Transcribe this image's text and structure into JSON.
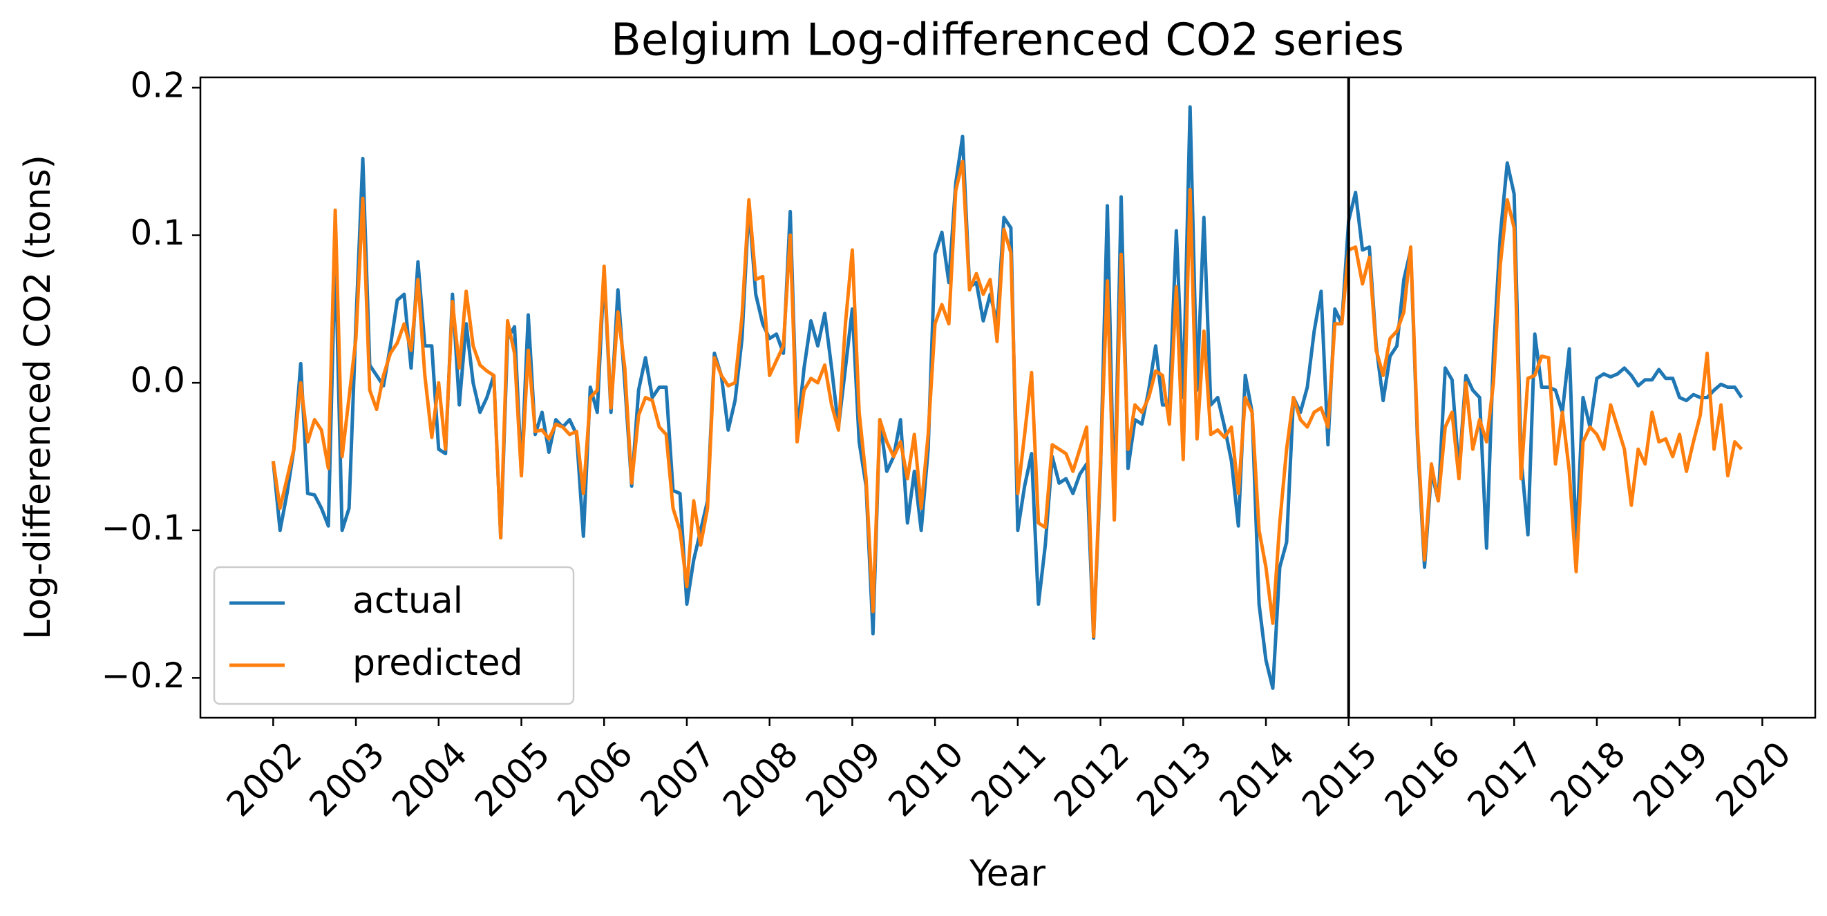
{
  "chart_data": {
    "type": "line",
    "title": "Belgium Log-differenced CO2 series",
    "x_label": "Year",
    "y_label": "Log-differenced CO2 (tons)",
    "xlim": [
      2001.12,
      2020.64
    ],
    "ylim": [
      -0.227,
      0.207
    ],
    "xticks": [
      2002,
      2003,
      2004,
      2005,
      2006,
      2007,
      2008,
      2009,
      2010,
      2011,
      2012,
      2013,
      2014,
      2015,
      2016,
      2017,
      2018,
      2019,
      2020
    ],
    "yticks": [
      {
        "value": -0.2,
        "label": "−0.2"
      },
      {
        "value": -0.1,
        "label": "−0.1"
      },
      {
        "value": 0,
        "label": "0.0"
      },
      0.1,
      0.2
    ],
    "vline": {
      "x": 2015,
      "color": "#000000"
    },
    "legend_position": "lower left",
    "x": [
      2002,
      2002.083,
      2002.167,
      2002.25,
      2002.333,
      2002.417,
      2002.5,
      2002.583,
      2002.667,
      2002.75,
      2002.833,
      2002.917,
      2003,
      2003.083,
      2003.167,
      2003.25,
      2003.333,
      2003.417,
      2003.5,
      2003.583,
      2003.667,
      2003.75,
      2003.833,
      2003.917,
      2004,
      2004.083,
      2004.167,
      2004.25,
      2004.333,
      2004.417,
      2004.5,
      2004.583,
      2004.667,
      2004.75,
      2004.833,
      2004.917,
      2005,
      2005.083,
      2005.167,
      2005.25,
      2005.333,
      2005.417,
      2005.5,
      2005.583,
      2005.667,
      2005.75,
      2005.833,
      2005.917,
      2006,
      2006.083,
      2006.167,
      2006.25,
      2006.333,
      2006.417,
      2006.5,
      2006.583,
      2006.667,
      2006.75,
      2006.833,
      2006.917,
      2007,
      2007.083,
      2007.167,
      2007.25,
      2007.333,
      2007.417,
      2007.5,
      2007.583,
      2007.667,
      2007.75,
      2007.833,
      2007.917,
      2008,
      2008.083,
      2008.167,
      2008.25,
      2008.333,
      2008.417,
      2008.5,
      2008.583,
      2008.667,
      2008.75,
      2008.833,
      2008.917,
      2009,
      2009.083,
      2009.167,
      2009.25,
      2009.333,
      2009.417,
      2009.5,
      2009.583,
      2009.667,
      2009.75,
      2009.833,
      2009.917,
      2010,
      2010.083,
      2010.167,
      2010.25,
      2010.333,
      2010.417,
      2010.5,
      2010.583,
      2010.667,
      2010.75,
      2010.833,
      2010.917,
      2011,
      2011.083,
      2011.167,
      2011.25,
      2011.333,
      2011.417,
      2011.5,
      2011.583,
      2011.667,
      2011.75,
      2011.833,
      2011.917,
      2012,
      2012.083,
      2012.167,
      2012.25,
      2012.333,
      2012.417,
      2012.5,
      2012.583,
      2012.667,
      2012.75,
      2012.833,
      2012.917,
      2013,
      2013.083,
      2013.167,
      2013.25,
      2013.333,
      2013.417,
      2013.5,
      2013.583,
      2013.667,
      2013.75,
      2013.833,
      2013.917,
      2014,
      2014.083,
      2014.167,
      2014.25,
      2014.333,
      2014.417,
      2014.5,
      2014.583,
      2014.667,
      2014.75,
      2014.833,
      2014.917,
      2015,
      2015.083,
      2015.167,
      2015.25,
      2015.333,
      2015.417,
      2015.5,
      2015.583,
      2015.667,
      2015.75,
      2015.833,
      2015.917,
      2016,
      2016.083,
      2016.167,
      2016.25,
      2016.333,
      2016.417,
      2016.5,
      2016.583,
      2016.667,
      2016.75,
      2016.833,
      2016.917,
      2017,
      2017.083,
      2017.167,
      2017.25,
      2017.333,
      2017.417,
      2017.5,
      2017.583,
      2017.667,
      2017.75,
      2017.833,
      2017.917,
      2018,
      2018.083,
      2018.167,
      2018.25,
      2018.333,
      2018.417,
      2018.5,
      2018.583,
      2018.667,
      2018.75,
      2018.833,
      2018.917,
      2019,
      2019.083,
      2019.167,
      2019.25,
      2019.333,
      2019.417,
      2019.5,
      2019.583,
      2019.667,
      2019.75
    ],
    "series": [
      {
        "name": "actual",
        "color": "#1f77b4",
        "values": [
          -0.053,
          -0.1,
          -0.075,
          -0.045,
          0.013,
          -0.075,
          -0.076,
          -0.085,
          -0.097,
          0.09,
          -0.1,
          -0.085,
          0.04,
          0.152,
          0.012,
          0.005,
          -0.002,
          0.025,
          0.056,
          0.06,
          0.01,
          0.082,
          0.025,
          0.025,
          -0.045,
          -0.048,
          0.06,
          -0.015,
          0.04,
          0,
          -0.02,
          -0.01,
          0.005,
          -0.105,
          0.03,
          0.038,
          -0.06,
          0.046,
          -0.035,
          -0.02,
          -0.047,
          -0.025,
          -0.03,
          -0.025,
          -0.035,
          -0.104,
          -0.003,
          -0.02,
          0.075,
          -0.02,
          0.063,
          0,
          -0.07,
          -0.005,
          0.017,
          -0.01,
          -0.003,
          -0.003,
          -0.073,
          -0.075,
          -0.15,
          -0.12,
          -0.1,
          -0.08,
          0.02,
          0.005,
          -0.032,
          -0.012,
          0.03,
          0.12,
          0.06,
          0.04,
          0.03,
          0.033,
          0.02,
          0.116,
          -0.035,
          0.01,
          0.042,
          0.025,
          0.047,
          0.01,
          -0.03,
          0.01,
          0.05,
          -0.04,
          -0.07,
          -0.17,
          -0.025,
          -0.06,
          -0.05,
          -0.025,
          -0.095,
          -0.06,
          -0.1,
          -0.045,
          0.087,
          0.102,
          0.068,
          0.135,
          0.167,
          0.065,
          0.068,
          0.042,
          0.06,
          0.04,
          0.112,
          0.105,
          -0.1,
          -0.07,
          -0.048,
          -0.15,
          -0.11,
          -0.05,
          -0.068,
          -0.065,
          -0.075,
          -0.062,
          -0.055,
          -0.173,
          -0.06,
          0.12,
          -0.09,
          0.126,
          -0.058,
          -0.025,
          -0.028,
          -0.005,
          0.025,
          -0.015,
          -0.015,
          0.103,
          -0.01,
          0.187,
          -0.005,
          0.112,
          -0.015,
          -0.01,
          -0.03,
          -0.053,
          -0.097,
          0.005,
          -0.02,
          -0.15,
          -0.188,
          -0.207,
          -0.125,
          -0.108,
          -0.01,
          -0.02,
          -0.003,
          0.035,
          0.062,
          -0.042,
          0.05,
          0.04,
          0.11,
          0.129,
          0.09,
          0.092,
          0.025,
          -0.012,
          0.018,
          0.025,
          0.07,
          0.09,
          -0.04,
          -0.125,
          -0.06,
          -0.08,
          0.01,
          0.002,
          -0.06,
          0.005,
          -0.005,
          -0.01,
          -0.112,
          0.02,
          0.1,
          0.149,
          0.128,
          -0.05,
          -0.103,
          0.033,
          -0.003,
          -0.003,
          -0.005,
          -0.02,
          0.023,
          -0.11,
          -0.01,
          -0.03,
          0.003,
          0.006,
          0.004,
          0.006,
          0.01,
          0.005,
          -0.002,
          0.002,
          0.002,
          0.009,
          0.003,
          0.003,
          -0.01,
          -0.012,
          -0.008,
          -0.01,
          -0.01,
          -0.005,
          -0.001,
          -0.003,
          -0.003,
          -0.01
        ]
      },
      {
        "name": "predicted",
        "color": "#ff7f0e",
        "values": [
          -0.053,
          -0.085,
          -0.065,
          -0.045,
          0,
          -0.04,
          -0.025,
          -0.032,
          -0.058,
          0.117,
          -0.05,
          -0.01,
          0.03,
          0.125,
          -0.005,
          -0.018,
          0.005,
          0.02,
          0.027,
          0.04,
          0.022,
          0.07,
          0.005,
          -0.037,
          0,
          -0.045,
          0.055,
          0.01,
          0.062,
          0.025,
          0.012,
          0.008,
          0.005,
          -0.105,
          0.042,
          0.02,
          -0.063,
          0.022,
          -0.033,
          -0.032,
          -0.038,
          -0.028,
          -0.03,
          -0.035,
          -0.033,
          -0.075,
          -0.01,
          -0.005,
          0.079,
          -0.017,
          0.048,
          0.01,
          -0.068,
          -0.022,
          -0.01,
          -0.012,
          -0.03,
          -0.035,
          -0.085,
          -0.1,
          -0.138,
          -0.08,
          -0.11,
          -0.085,
          0.017,
          0.005,
          -0.002,
          0,
          0.045,
          0.124,
          0.07,
          0.072,
          0.005,
          0.015,
          0.025,
          0.1,
          -0.04,
          -0.005,
          0.003,
          0,
          0.012,
          -0.015,
          -0.032,
          0.04,
          0.09,
          -0.02,
          -0.065,
          -0.155,
          -0.025,
          -0.04,
          -0.05,
          -0.04,
          -0.065,
          -0.035,
          -0.085,
          -0.035,
          0.04,
          0.053,
          0.04,
          0.13,
          0.15,
          0.063,
          0.074,
          0.06,
          0.07,
          0.028,
          0.104,
          0.088,
          -0.075,
          -0.035,
          0.007,
          -0.095,
          -0.098,
          -0.042,
          -0.045,
          -0.048,
          -0.06,
          -0.045,
          -0.03,
          -0.172,
          -0.055,
          0.069,
          -0.093,
          0.087,
          -0.045,
          -0.015,
          -0.02,
          -0.01,
          0.008,
          0.005,
          -0.028,
          0.065,
          -0.052,
          0.131,
          -0.038,
          0.035,
          -0.035,
          -0.032,
          -0.037,
          -0.03,
          -0.075,
          -0.01,
          -0.02,
          -0.1,
          -0.125,
          -0.163,
          -0.095,
          -0.045,
          -0.01,
          -0.025,
          -0.03,
          -0.02,
          -0.017,
          -0.03,
          0.04,
          0.04,
          0.09,
          0.092,
          0.067,
          0.085,
          0.022,
          0.005,
          0.03,
          0.035,
          0.048,
          0.092,
          -0.035,
          -0.12,
          -0.055,
          -0.08,
          -0.03,
          -0.02,
          -0.065,
          0,
          -0.045,
          -0.025,
          -0.04,
          0,
          0.08,
          0.124,
          0.105,
          -0.065,
          0.003,
          0.005,
          0.018,
          0.017,
          -0.055,
          -0.02,
          -0.06,
          -0.128,
          -0.04,
          -0.03,
          -0.035,
          -0.045,
          -0.015,
          -0.03,
          -0.045,
          -0.083,
          -0.045,
          -0.055,
          -0.02,
          -0.04,
          -0.038,
          -0.05,
          -0.035,
          -0.06,
          -0.04,
          -0.022,
          0.02,
          -0.045,
          -0.015,
          -0.063,
          -0.04,
          -0.045
        ]
      }
    ]
  }
}
